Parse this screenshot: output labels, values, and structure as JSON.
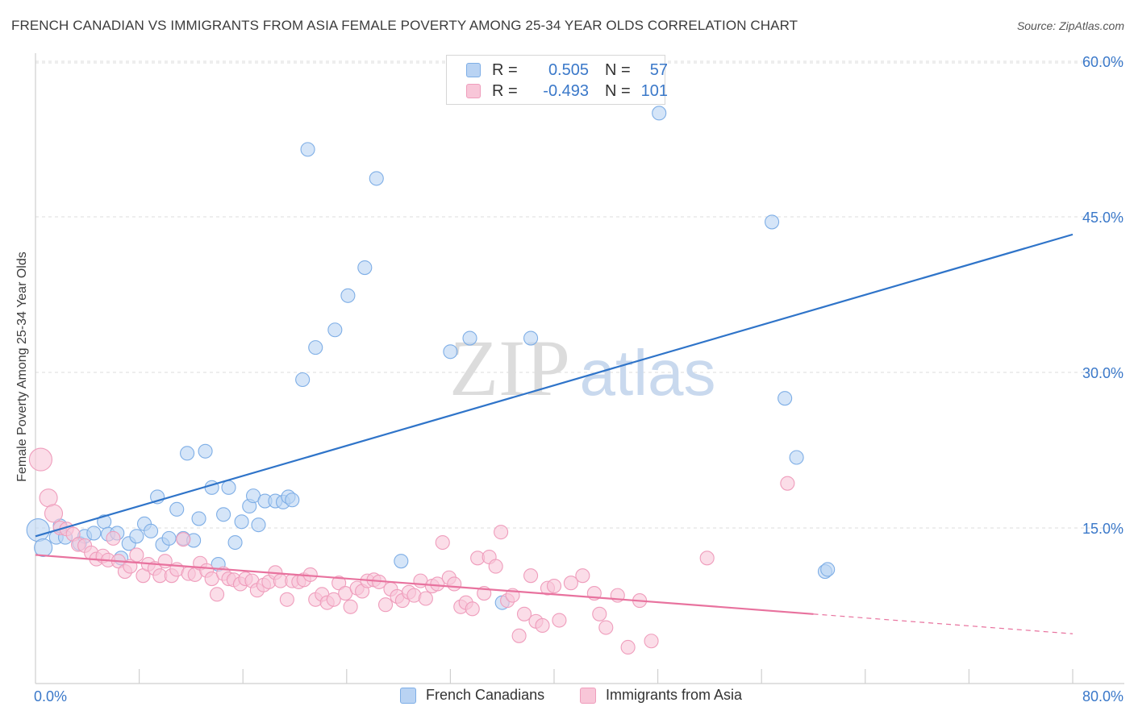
{
  "title": "FRENCH CANADIAN VS IMMIGRANTS FROM ASIA FEMALE POVERTY AMONG 25-34 YEAR OLDS CORRELATION CHART",
  "source": "Source: ZipAtlas.com",
  "watermark": {
    "zip": "ZIP",
    "atlas": "atlas"
  },
  "legend": {
    "rows": [
      {
        "r_label": "R =",
        "r_value": "0.505",
        "n_label": "N =",
        "n_value": "57"
      },
      {
        "r_label": "R =",
        "r_value": "-0.493",
        "n_label": "N =",
        "n_value": "101"
      }
    ]
  },
  "chart_data": {
    "type": "scatter",
    "ylabel": "Female Poverty Among 25-34 Year Olds",
    "xlim": [
      0,
      80
    ],
    "ylim": [
      0,
      63
    ],
    "x_tick_labels": [
      "0.0%",
      "80.0%"
    ],
    "y_ticks": [
      15,
      30,
      45,
      60
    ],
    "y_tick_labels": [
      "15.0%",
      "30.0%",
      "45.0%",
      "60.0%"
    ],
    "grid": "horizontal dashed",
    "legend_position": "top-center",
    "series": [
      {
        "name": "French Canadians",
        "color": "#6fa8e8",
        "line_color": "#2f74c9",
        "trend": {
          "x": [
            0,
            80
          ],
          "y": [
            14.2,
            43.3
          ]
        },
        "points": [
          [
            0.2,
            14.8
          ],
          [
            0.6,
            13.1
          ],
          [
            1.6,
            14.1
          ],
          [
            1.9,
            15.2
          ],
          [
            2.3,
            14.1
          ],
          [
            3.4,
            13.5
          ],
          [
            3.8,
            14.2
          ],
          [
            4.5,
            14.5
          ],
          [
            5.3,
            15.6
          ],
          [
            5.6,
            14.4
          ],
          [
            6.3,
            14.5
          ],
          [
            6.6,
            12.1
          ],
          [
            7.2,
            13.5
          ],
          [
            7.8,
            14.2
          ],
          [
            8.4,
            15.4
          ],
          [
            8.9,
            14.7
          ],
          [
            9.4,
            18.0
          ],
          [
            9.8,
            13.4
          ],
          [
            10.3,
            14.0
          ],
          [
            10.9,
            16.8
          ],
          [
            11.4,
            14.0
          ],
          [
            11.7,
            22.2
          ],
          [
            12.2,
            13.8
          ],
          [
            12.6,
            15.9
          ],
          [
            13.1,
            22.4
          ],
          [
            13.6,
            18.9
          ],
          [
            14.1,
            11.5
          ],
          [
            14.5,
            16.3
          ],
          [
            14.9,
            18.9
          ],
          [
            15.4,
            13.6
          ],
          [
            15.9,
            15.6
          ],
          [
            16.5,
            17.1
          ],
          [
            16.8,
            18.1
          ],
          [
            17.2,
            15.3
          ],
          [
            17.7,
            17.6
          ],
          [
            18.5,
            17.6
          ],
          [
            19.1,
            17.5
          ],
          [
            19.5,
            18.0
          ],
          [
            19.8,
            17.7
          ],
          [
            20.6,
            29.3
          ],
          [
            21.0,
            51.5
          ],
          [
            21.6,
            32.4
          ],
          [
            23.1,
            34.1
          ],
          [
            24.1,
            37.4
          ],
          [
            25.4,
            40.1
          ],
          [
            26.3,
            48.7
          ],
          [
            28.2,
            11.8
          ],
          [
            32.0,
            32.0
          ],
          [
            33.5,
            33.3
          ],
          [
            36.0,
            7.8
          ],
          [
            38.2,
            33.3
          ],
          [
            48.1,
            55.0
          ],
          [
            56.8,
            44.5
          ],
          [
            57.8,
            27.5
          ],
          [
            58.7,
            21.8
          ],
          [
            60.9,
            10.8
          ],
          [
            61.1,
            11.0
          ]
        ]
      },
      {
        "name": "Immigrants from Asia",
        "color": "#f08fb4",
        "line_color": "#e8729e",
        "trend": {
          "x": [
            0,
            80
          ],
          "y": [
            12.4,
            4.8
          ]
        },
        "trend_solid_to_x": 60,
        "points": [
          [
            0.4,
            21.6
          ],
          [
            1.0,
            17.9
          ],
          [
            1.4,
            16.4
          ],
          [
            1.9,
            15.0
          ],
          [
            2.4,
            14.9
          ],
          [
            2.9,
            14.4
          ],
          [
            3.3,
            13.4
          ],
          [
            3.8,
            13.3
          ],
          [
            4.3,
            12.6
          ],
          [
            4.7,
            12.0
          ],
          [
            5.2,
            12.3
          ],
          [
            5.6,
            11.9
          ],
          [
            6.0,
            14.0
          ],
          [
            6.4,
            11.8
          ],
          [
            6.9,
            10.8
          ],
          [
            7.3,
            11.3
          ],
          [
            7.8,
            12.4
          ],
          [
            8.3,
            10.4
          ],
          [
            8.7,
            11.5
          ],
          [
            9.2,
            11.1
          ],
          [
            9.6,
            10.4
          ],
          [
            10.0,
            11.8
          ],
          [
            10.5,
            10.4
          ],
          [
            10.9,
            11.0
          ],
          [
            11.4,
            13.9
          ],
          [
            11.8,
            10.6
          ],
          [
            12.3,
            10.5
          ],
          [
            12.7,
            11.6
          ],
          [
            13.2,
            10.9
          ],
          [
            13.6,
            10.1
          ],
          [
            14.0,
            8.6
          ],
          [
            14.5,
            10.6
          ],
          [
            14.9,
            10.1
          ],
          [
            15.3,
            10.0
          ],
          [
            15.8,
            9.6
          ],
          [
            16.2,
            10.1
          ],
          [
            16.7,
            9.9
          ],
          [
            17.1,
            9.0
          ],
          [
            17.6,
            9.5
          ],
          [
            18.0,
            9.8
          ],
          [
            18.5,
            10.7
          ],
          [
            18.9,
            9.9
          ],
          [
            19.4,
            8.1
          ],
          [
            19.8,
            9.9
          ],
          [
            20.3,
            9.8
          ],
          [
            20.7,
            10.0
          ],
          [
            21.2,
            10.5
          ],
          [
            21.6,
            8.1
          ],
          [
            22.1,
            8.6
          ],
          [
            22.5,
            7.8
          ],
          [
            23.0,
            8.1
          ],
          [
            23.4,
            9.7
          ],
          [
            23.9,
            8.7
          ],
          [
            24.3,
            7.4
          ],
          [
            24.8,
            9.2
          ],
          [
            25.2,
            8.9
          ],
          [
            25.6,
            9.9
          ],
          [
            26.1,
            10.0
          ],
          [
            26.5,
            9.8
          ],
          [
            27.0,
            7.6
          ],
          [
            27.4,
            9.1
          ],
          [
            27.9,
            8.4
          ],
          [
            28.3,
            8.0
          ],
          [
            28.8,
            8.8
          ],
          [
            29.2,
            8.5
          ],
          [
            29.7,
            9.9
          ],
          [
            30.1,
            8.2
          ],
          [
            30.6,
            9.4
          ],
          [
            31.0,
            9.6
          ],
          [
            31.4,
            13.6
          ],
          [
            31.9,
            10.2
          ],
          [
            32.3,
            9.6
          ],
          [
            32.8,
            7.4
          ],
          [
            33.2,
            7.8
          ],
          [
            33.7,
            7.2
          ],
          [
            34.1,
            12.1
          ],
          [
            34.6,
            8.7
          ],
          [
            35.0,
            12.2
          ],
          [
            35.5,
            11.3
          ],
          [
            35.9,
            14.6
          ],
          [
            36.4,
            8.0
          ],
          [
            36.8,
            8.5
          ],
          [
            37.3,
            4.6
          ],
          [
            37.7,
            6.7
          ],
          [
            38.2,
            10.4
          ],
          [
            38.6,
            6.0
          ],
          [
            39.1,
            5.6
          ],
          [
            39.5,
            9.2
          ],
          [
            40.0,
            9.4
          ],
          [
            40.4,
            6.1
          ],
          [
            41.3,
            9.7
          ],
          [
            42.2,
            10.4
          ],
          [
            43.1,
            8.7
          ],
          [
            43.5,
            6.7
          ],
          [
            44.0,
            5.4
          ],
          [
            44.9,
            8.5
          ],
          [
            45.7,
            3.5
          ],
          [
            46.6,
            8.0
          ],
          [
            47.5,
            4.1
          ],
          [
            51.8,
            12.1
          ],
          [
            58.0,
            19.3
          ]
        ]
      }
    ]
  },
  "bottom_legend": [
    "French Canadians",
    "Immigrants from Asia"
  ]
}
